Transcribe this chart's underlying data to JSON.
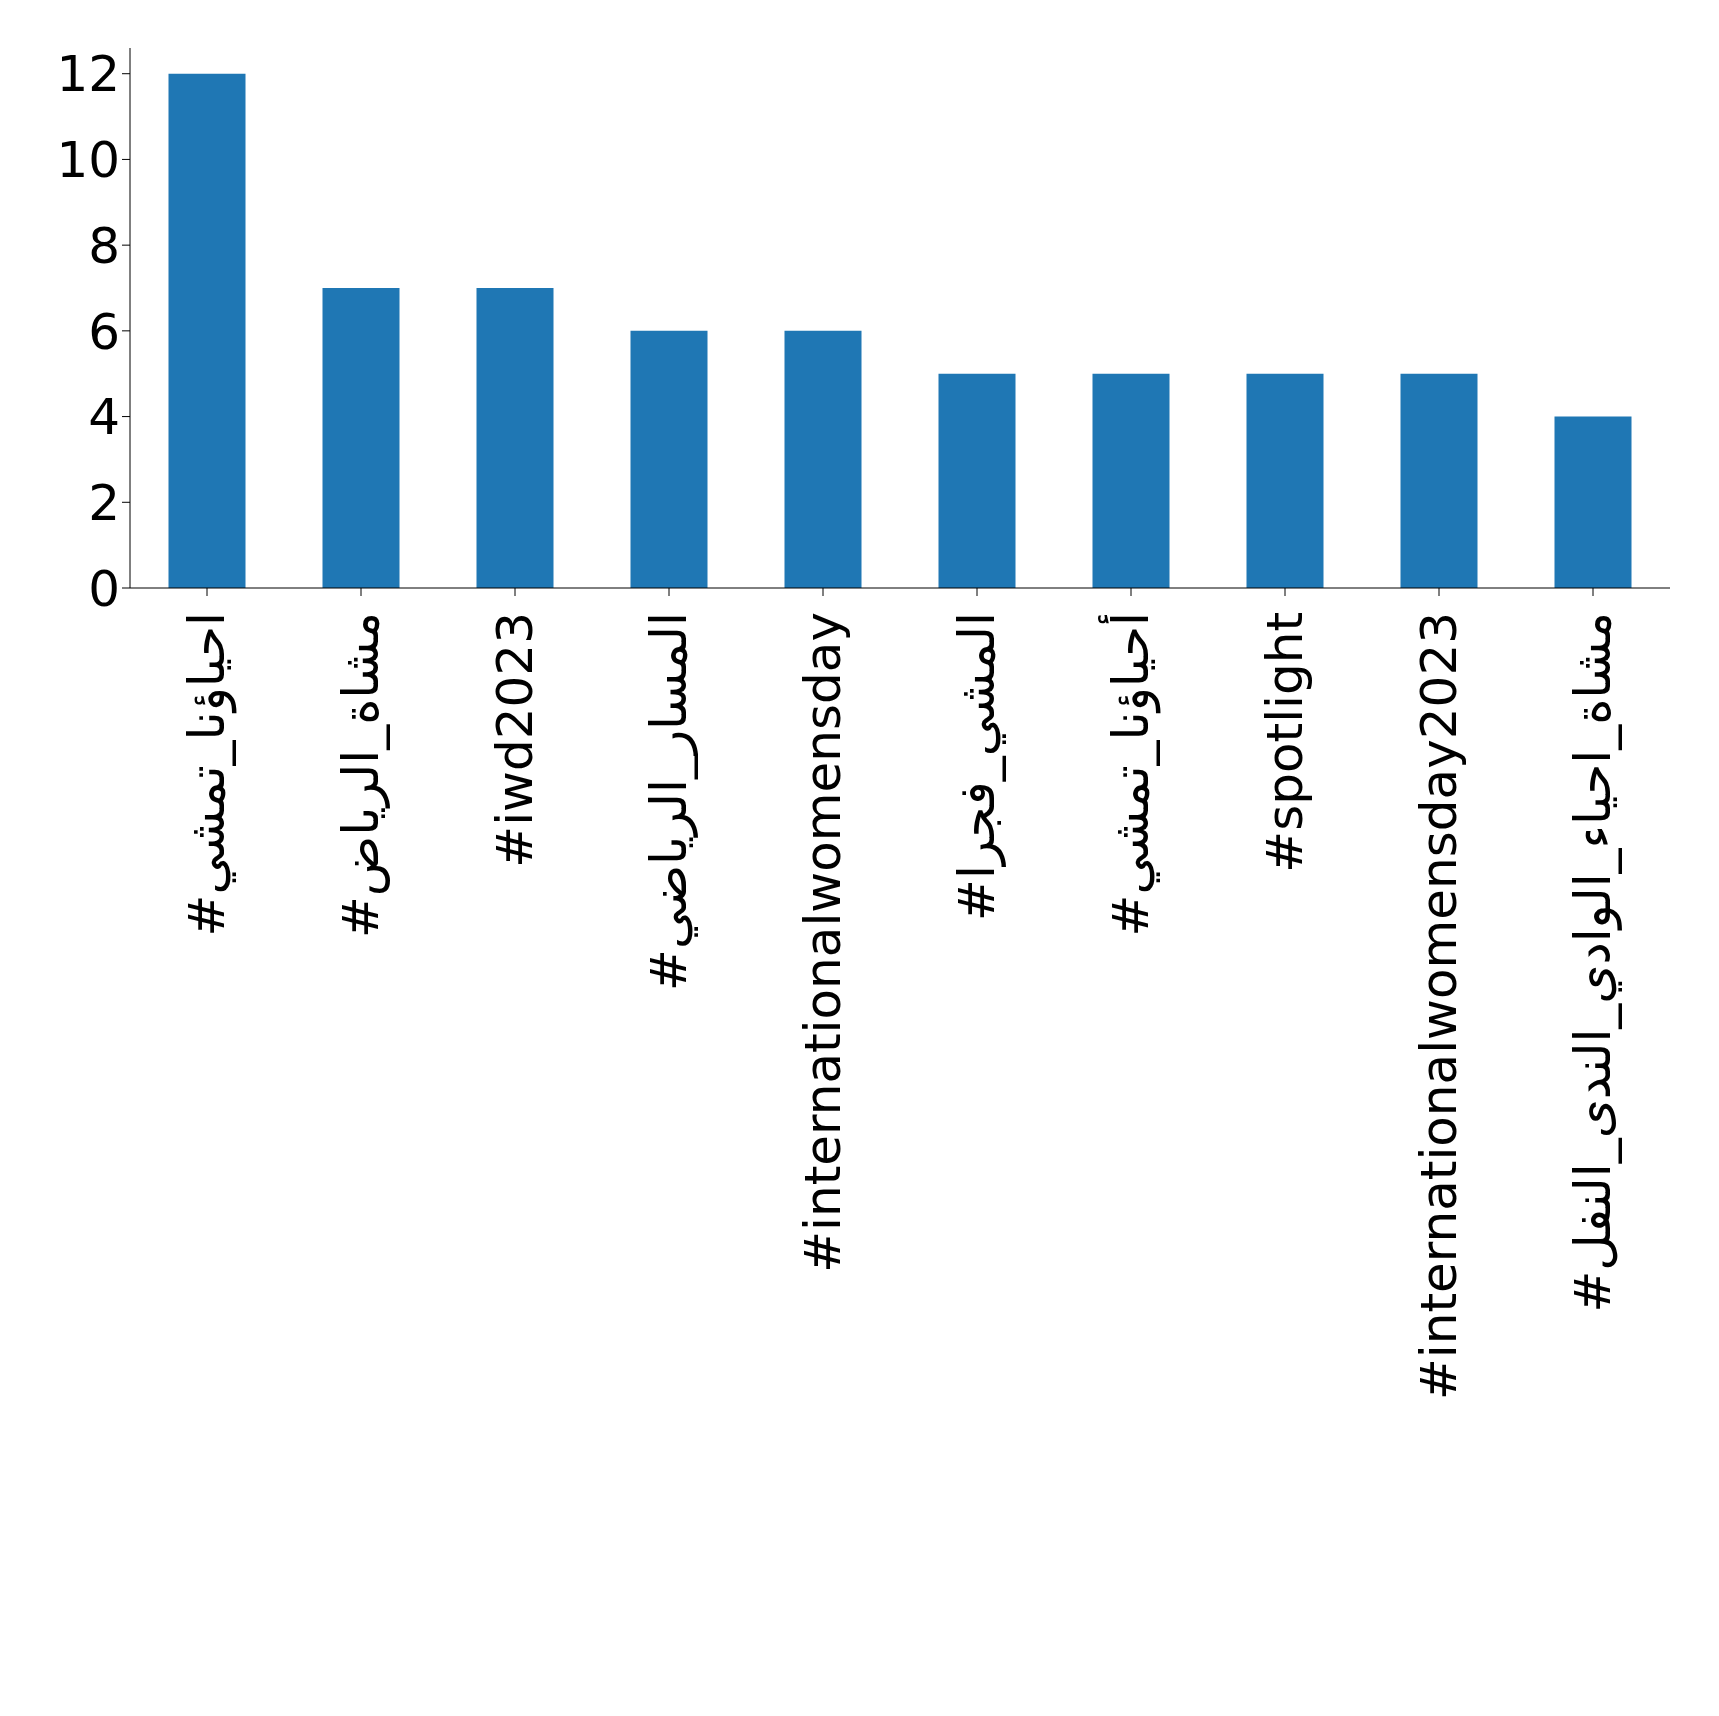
{
  "chart_data": {
    "type": "bar",
    "categories": [
      "#احياؤنا_تمشي",
      "#مشاة_الرياض",
      "#iwd2023",
      "#المسار_الرياضي",
      "#internationalwomensday",
      "#المشي_فجرا",
      "#أحياؤنا_تمشي",
      "#spotlight",
      "#internationalwomensday2023",
      "#مشاة_احياء_الوادي_الندى_النفل"
    ],
    "values": [
      12,
      7,
      7,
      6,
      6,
      5,
      5,
      5,
      5,
      4
    ],
    "color": "#1f77b4",
    "ylim": [
      0,
      12.6
    ],
    "yticks": [
      0,
      2,
      4,
      6,
      8,
      10,
      12
    ],
    "grid": false,
    "legend": false
  }
}
